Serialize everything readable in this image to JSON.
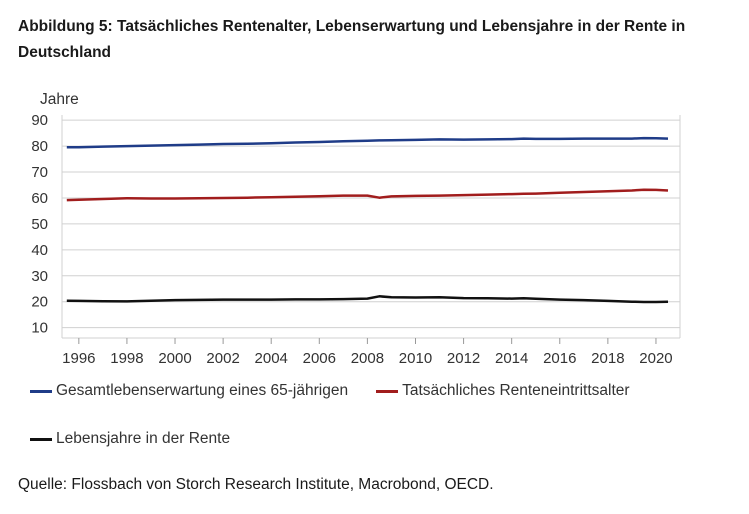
{
  "chart_data": {
    "type": "line",
    "title": "Abbildung 5: Tatsächliches Rentenalter, Lebenserwartung und Lebensjahre in der Rente in Deutschland",
    "ylabel": "Jahre",
    "xlabel": "",
    "ylim": [
      6,
      92
    ],
    "xlim": [
      1995.3,
      2021.0
    ],
    "yticks": [
      10,
      20,
      30,
      40,
      50,
      60,
      70,
      80,
      90
    ],
    "xticks": [
      1996,
      1998,
      2000,
      2002,
      2004,
      2006,
      2008,
      2010,
      2012,
      2014,
      2016,
      2018,
      2020
    ],
    "grid": true,
    "legend_position": "bottom",
    "x": [
      1995.5,
      1996,
      1997,
      1998,
      1999,
      2000,
      2001,
      2002,
      2003,
      2004,
      2005,
      2006,
      2007,
      2008,
      2008.5,
      2009,
      2010,
      2011,
      2012,
      2013,
      2014,
      2014.5,
      2015,
      2016,
      2017,
      2018,
      2019,
      2019.5,
      2020,
      2020.5
    ],
    "series": [
      {
        "name": "Gesamtlebenserwartung eines 65-jährigen",
        "color": "#1f3c88",
        "values": [
          79.6,
          79.6,
          79.8,
          80.0,
          80.2,
          80.4,
          80.6,
          80.8,
          80.9,
          81.1,
          81.4,
          81.6,
          81.9,
          82.1,
          82.2,
          82.3,
          82.4,
          82.6,
          82.5,
          82.6,
          82.7,
          82.9,
          82.8,
          82.8,
          82.9,
          82.9,
          82.9,
          83.1,
          83.0,
          82.9
        ]
      },
      {
        "name": "Tatsächliches Renteneintrittsalter",
        "color": "#a11d1d",
        "values": [
          59.2,
          59.3,
          59.6,
          59.9,
          59.8,
          59.8,
          59.9,
          60.0,
          60.1,
          60.3,
          60.5,
          60.7,
          60.9,
          60.9,
          60.1,
          60.6,
          60.8,
          60.9,
          61.1,
          61.3,
          61.5,
          61.6,
          61.7,
          62.0,
          62.3,
          62.6,
          62.9,
          63.2,
          63.1,
          62.9
        ]
      },
      {
        "name": "Lebensjahre in der Rente",
        "color": "#111111",
        "values": [
          20.4,
          20.3,
          20.2,
          20.1,
          20.4,
          20.6,
          20.7,
          20.8,
          20.8,
          20.8,
          20.9,
          20.9,
          21.0,
          21.2,
          22.1,
          21.7,
          21.6,
          21.7,
          21.4,
          21.3,
          21.2,
          21.3,
          21.1,
          20.8,
          20.6,
          20.3,
          20.0,
          19.9,
          19.9,
          20.0
        ]
      }
    ]
  },
  "source": "Quelle: Flossbach von Storch Research Institute, Macrobond, OECD.",
  "colors": {
    "grid": "#d0d0d0",
    "axis_text": "#333333"
  }
}
